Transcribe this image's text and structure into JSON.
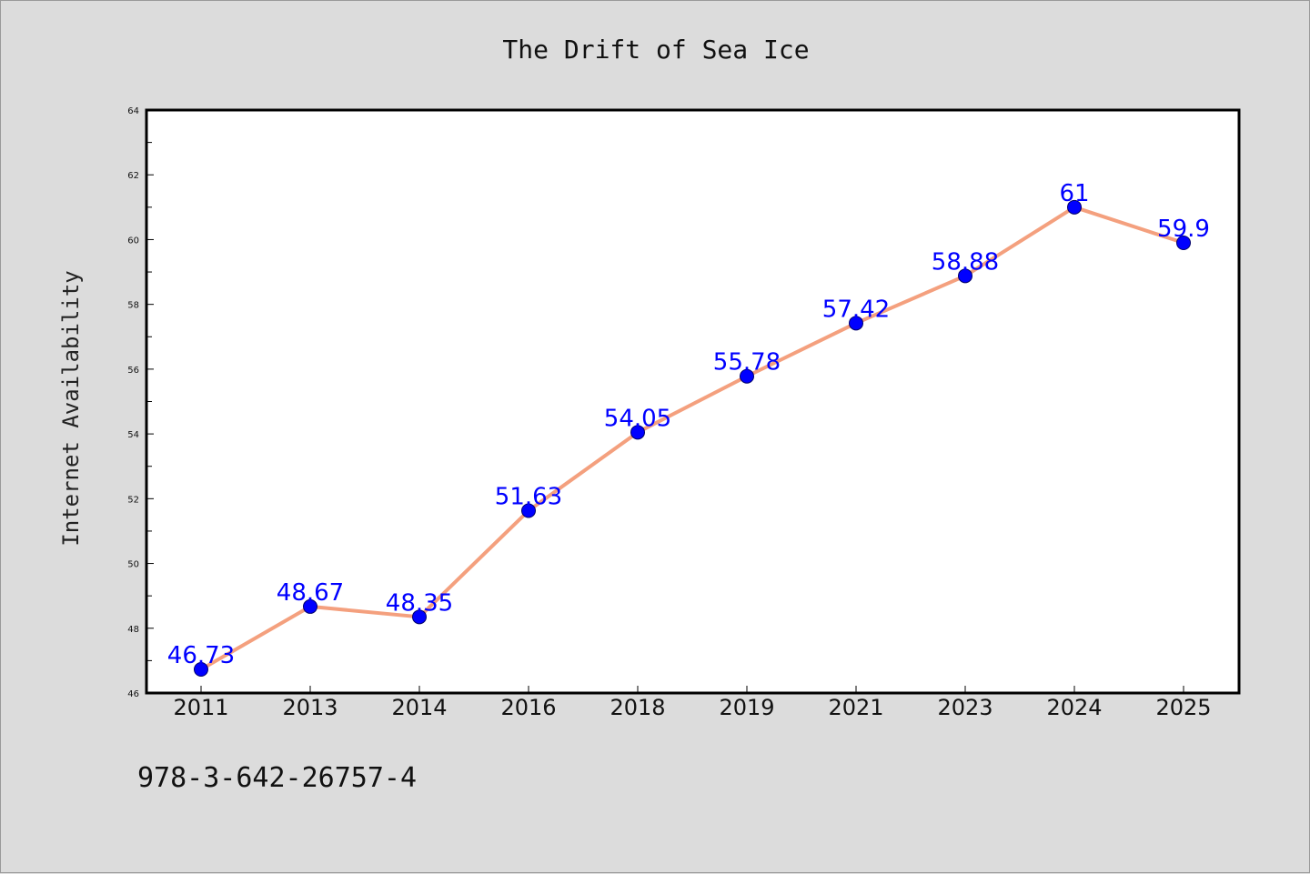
{
  "chart_data": {
    "type": "line",
    "title": "The Drift of Sea Ice",
    "xlabel": "",
    "ylabel": "Internet Availability",
    "categories": [
      "2011",
      "2013",
      "2014",
      "2016",
      "2018",
      "2019",
      "2021",
      "2023",
      "2024",
      "2025"
    ],
    "series": [
      {
        "values": [
          46.73,
          48.67,
          48.35,
          51.63,
          54.05,
          55.78,
          57.42,
          58.88,
          61,
          59.9
        ],
        "labels": [
          "46.73",
          "48.67",
          "48.35",
          "51.63",
          "54.05",
          "55.78",
          "57.42",
          "58.88",
          "61",
          "59.9"
        ],
        "line_color": "#f4a07e",
        "marker_color": "#0000ff",
        "label_color": "#0000ff"
      }
    ],
    "ylim": [
      46,
      64
    ],
    "yticks": [
      46,
      48,
      50,
      52,
      54,
      56,
      58,
      60,
      62,
      64
    ],
    "yminor_step": 1,
    "grid": false,
    "legend": "none"
  },
  "footer": {
    "isbn": "978-3-642-26757-4"
  }
}
